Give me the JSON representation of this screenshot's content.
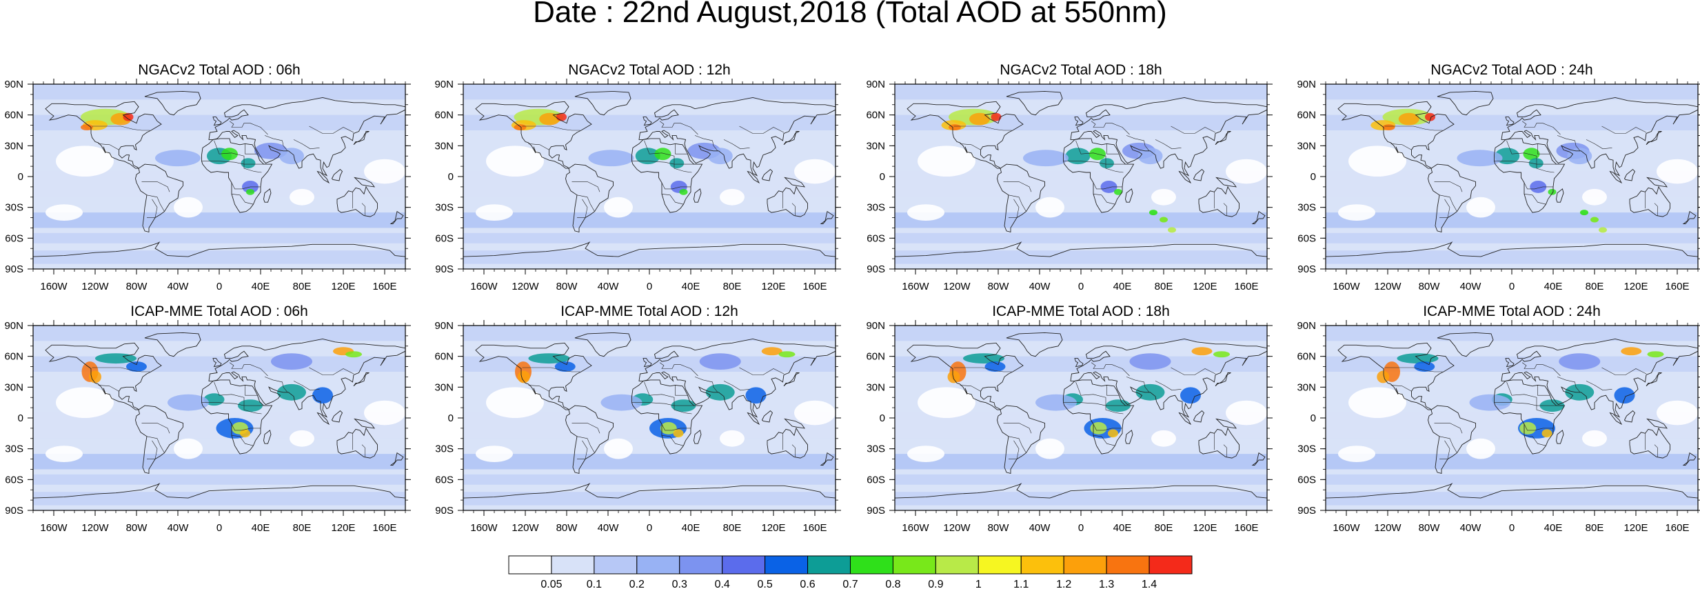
{
  "title": "Date : 22nd August,2018 (Total AOD at 550nm)",
  "panels": [
    {
      "title": "NGACv2 Total AOD : 06h",
      "model": "NGACv2",
      "hour": "06h"
    },
    {
      "title": "NGACv2 Total AOD : 12h",
      "model": "NGACv2",
      "hour": "12h"
    },
    {
      "title": "NGACv2 Total AOD : 18h",
      "model": "NGACv2",
      "hour": "18h"
    },
    {
      "title": "NGACv2 Total AOD : 24h",
      "model": "NGACv2",
      "hour": "24h"
    },
    {
      "title": "ICAP-MME Total AOD : 06h",
      "model": "ICAP-MME",
      "hour": "06h"
    },
    {
      "title": "ICAP-MME Total AOD : 12h",
      "model": "ICAP-MME",
      "hour": "12h"
    },
    {
      "title": "ICAP-MME Total AOD : 18h",
      "model": "ICAP-MME",
      "hour": "18h"
    },
    {
      "title": "ICAP-MME Total AOD : 24h",
      "model": "ICAP-MME",
      "hour": "24h"
    }
  ],
  "lat_ticks": [
    "90N",
    "60N",
    "30N",
    "0",
    "30S",
    "60S",
    "90S"
  ],
  "lon_ticks": [
    "160W",
    "120W",
    "80W",
    "40W",
    "0",
    "40E",
    "80E",
    "120E",
    "160E"
  ],
  "colorbar": {
    "labels": [
      "0.05",
      "0.1",
      "0.2",
      "0.3",
      "0.4",
      "0.5",
      "0.6",
      "0.7",
      "0.8",
      "0.9",
      "1",
      "1.1",
      "1.2",
      "1.3",
      "1.4"
    ],
    "colors": [
      "#ffffff",
      "#d8e2f8",
      "#b7c8f6",
      "#98b2f4",
      "#7c93f0",
      "#5b6cec",
      "#0a62e6",
      "#0d9d96",
      "#2fe01a",
      "#78e81a",
      "#b8ea48",
      "#f6f621",
      "#fcc00c",
      "#fca00b",
      "#f87410",
      "#f42a1a"
    ]
  },
  "map_style": {
    "ocean_bg": "#d9e3f8",
    "coast": "#222222"
  }
}
